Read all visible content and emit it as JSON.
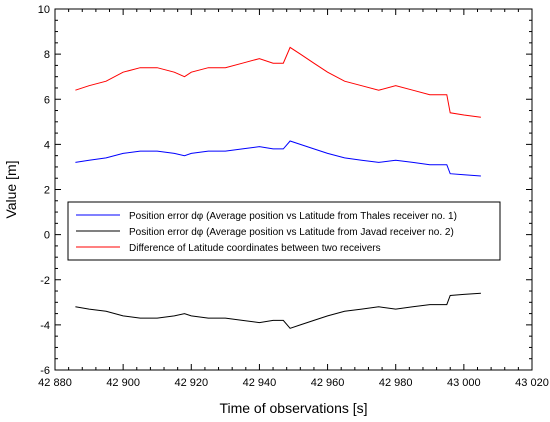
{
  "chart_data": {
    "type": "line",
    "title": "",
    "xlabel": "Time of observations [s]",
    "ylabel": "Value [m]",
    "xlim": [
      42880,
      43020
    ],
    "ylim": [
      -6,
      10
    ],
    "x_ticks": [
      42880,
      42900,
      42920,
      42940,
      42960,
      42980,
      43000,
      43020
    ],
    "x_tick_labels": [
      "42 880",
      "42 900",
      "42 920",
      "42 940",
      "42 960",
      "42 980",
      "43 000",
      "43 020"
    ],
    "y_ticks": [
      -6,
      -4,
      -2,
      0,
      2,
      4,
      6,
      8,
      10
    ],
    "y_tick_labels": [
      "-6",
      "-4",
      "-2",
      "0",
      "2",
      "4",
      "6",
      "8",
      "10"
    ],
    "grid": false,
    "legend_position": "center-left",
    "series": [
      {
        "name": "Position error dφ (Average position vs Latitude from Thales receiver no. 1)",
        "color": "#0000ff",
        "x": [
          42886,
          42890,
          42895,
          42900,
          42905,
          42910,
          42915,
          42918,
          42920,
          42925,
          42930,
          42935,
          42940,
          42944,
          42947,
          42949,
          42952,
          42956,
          42960,
          42965,
          42970,
          42975,
          42980,
          42985,
          42990,
          42995,
          42996,
          43000,
          43005
        ],
        "y": [
          3.2,
          3.3,
          3.4,
          3.6,
          3.7,
          3.7,
          3.6,
          3.5,
          3.6,
          3.7,
          3.7,
          3.8,
          3.9,
          3.8,
          3.8,
          4.15,
          4.0,
          3.8,
          3.6,
          3.4,
          3.3,
          3.2,
          3.3,
          3.2,
          3.1,
          3.1,
          2.7,
          2.65,
          2.6
        ]
      },
      {
        "name": "Position error dφ (Average position vs Latitude from Javad receiver no. 2)",
        "color": "#000000",
        "x": [
          42886,
          42890,
          42895,
          42900,
          42905,
          42910,
          42915,
          42918,
          42920,
          42925,
          42930,
          42935,
          42940,
          42944,
          42947,
          42949,
          42952,
          42956,
          42960,
          42965,
          42970,
          42975,
          42980,
          42985,
          42990,
          42995,
          42996,
          43000,
          43005
        ],
        "y": [
          -3.2,
          -3.3,
          -3.4,
          -3.6,
          -3.7,
          -3.7,
          -3.6,
          -3.5,
          -3.6,
          -3.7,
          -3.7,
          -3.8,
          -3.9,
          -3.8,
          -3.8,
          -4.15,
          -4.0,
          -3.8,
          -3.6,
          -3.4,
          -3.3,
          -3.2,
          -3.3,
          -3.2,
          -3.1,
          -3.1,
          -2.7,
          -2.65,
          -2.6
        ]
      },
      {
        "name": "Difference of Latitude coordinates between two receivers",
        "color": "#ff0000",
        "x": [
          42886,
          42890,
          42895,
          42900,
          42905,
          42910,
          42915,
          42918,
          42920,
          42925,
          42930,
          42935,
          42940,
          42944,
          42947,
          42949,
          42952,
          42956,
          42960,
          42965,
          42970,
          42975,
          42980,
          42985,
          42990,
          42995,
          42996,
          43000,
          43005
        ],
        "y": [
          6.4,
          6.6,
          6.8,
          7.2,
          7.4,
          7.4,
          7.2,
          7.0,
          7.2,
          7.4,
          7.4,
          7.6,
          7.8,
          7.6,
          7.6,
          8.3,
          8.0,
          7.6,
          7.2,
          6.8,
          6.6,
          6.4,
          6.6,
          6.4,
          6.2,
          6.2,
          5.4,
          5.3,
          5.2
        ]
      }
    ]
  }
}
